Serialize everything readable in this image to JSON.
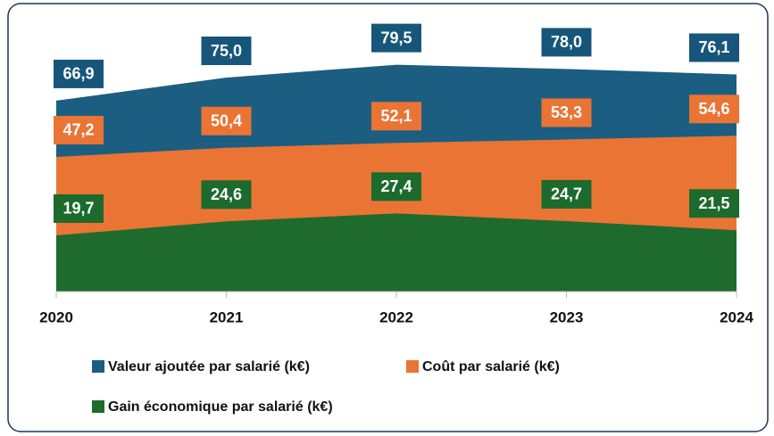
{
  "chart_data": {
    "type": "area",
    "categories": [
      "2020",
      "2021",
      "2022",
      "2023",
      "2024"
    ],
    "series": [
      {
        "name": "Valeur ajoutée par salarié (k€)",
        "color": "#1b5e82",
        "label_color": "#17567a",
        "values": [
          66.9,
          75.0,
          79.5,
          78.0,
          76.1
        ],
        "value_labels": [
          "66,9",
          "75,0",
          "79,5",
          "78,0",
          "76,1"
        ]
      },
      {
        "name": "Coût par salarié (k€)",
        "color": "#ea7434",
        "label_color": "#ea7434",
        "values": [
          47.2,
          50.4,
          52.1,
          53.3,
          54.6
        ],
        "value_labels": [
          "47,2",
          "50,4",
          "52,1",
          "53,3",
          "54,6"
        ]
      },
      {
        "name": "Gain économique par salarié (k€)",
        "color": "#1e6b2d",
        "label_color": "#1c6a2c",
        "values": [
          19.7,
          24.6,
          27.4,
          24.7,
          21.5
        ],
        "value_labels": [
          "19,7",
          "24,6",
          "27,4",
          "24,7",
          "21,5"
        ]
      }
    ],
    "ylim": [
      0,
      90
    ]
  }
}
